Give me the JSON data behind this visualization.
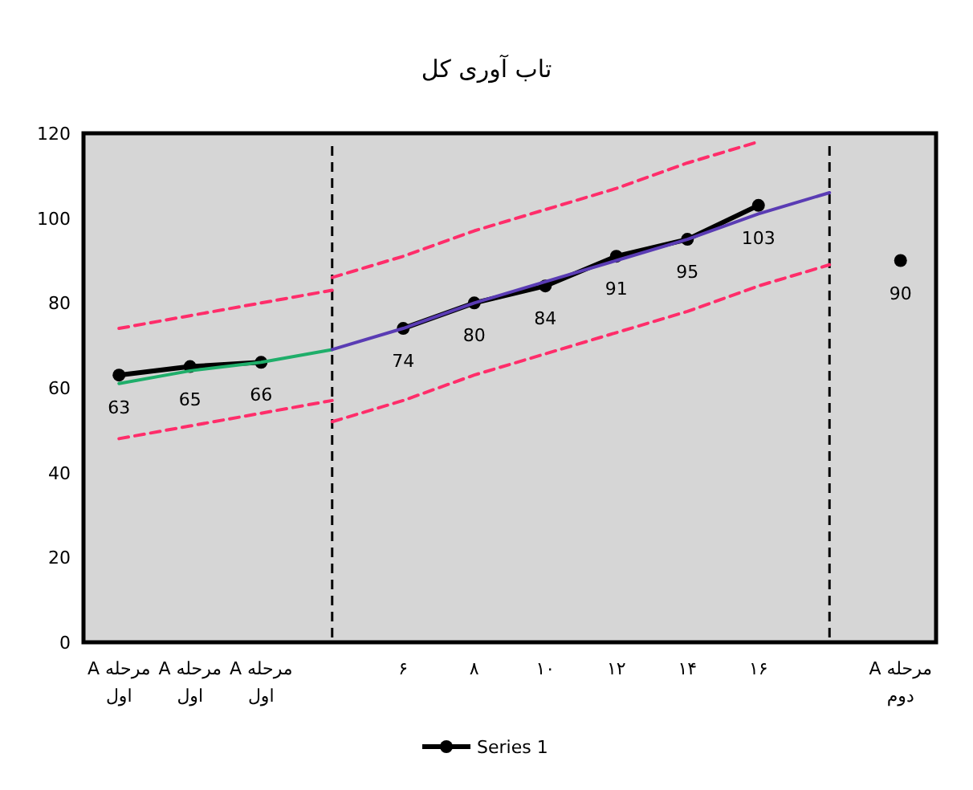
{
  "chart_data": {
    "type": "line",
    "title": "تاب آوری کل",
    "categories": [
      "مرحله A اول",
      "مرحله A اول",
      "مرحله A اول",
      null,
      "۶",
      "۸",
      "۱۰",
      "۱۲",
      "۱۴",
      "۱۶",
      null,
      "مرحله A دوم"
    ],
    "series": [
      {
        "name": "Series 1",
        "color": "#000000",
        "marker": "circle",
        "values": [
          63,
          65,
          66,
          null,
          74,
          80,
          84,
          91,
          95,
          103,
          null,
          90
        ],
        "value_labels": [
          "63",
          "65",
          "66",
          null,
          "74",
          "80",
          "84",
          "91",
          "95",
          "103",
          null,
          "90"
        ]
      },
      {
        "type": "line",
        "values": [
          61,
          64,
          66,
          69,
          null,
          null,
          null,
          null,
          null,
          null,
          null,
          null
        ],
        "color": "#1fae6a"
      },
      {
        "type": "line",
        "values": [
          null,
          null,
          null,
          69,
          74,
          80,
          85,
          90,
          95,
          101,
          106,
          null
        ],
        "color": "#5a3cb4"
      },
      {
        "type": "line",
        "values": [
          74,
          77,
          80,
          83,
          null,
          null,
          null,
          null,
          null,
          null,
          null,
          null
        ],
        "color": "#ff2d6a",
        "line_style": "dashed"
      },
      {
        "type": "line",
        "values": [
          null,
          null,
          null,
          86,
          91,
          97,
          102,
          107,
          113,
          118,
          null,
          null
        ],
        "color": "#ff2d6a",
        "line_style": "dashed"
      },
      {
        "type": "line",
        "values": [
          48,
          51,
          54,
          57,
          null,
          null,
          null,
          null,
          null,
          null,
          null,
          null
        ],
        "color": "#ff2d6a",
        "line_style": "dashed"
      },
      {
        "type": "line",
        "values": [
          null,
          null,
          null,
          52,
          57,
          63,
          68,
          73,
          78,
          84,
          89,
          null
        ],
        "color": "#ff2d6a",
        "line_style": "dashed"
      }
    ],
    "ylim": [
      0,
      120
    ],
    "yticks": [
      0,
      20,
      40,
      60,
      80,
      100,
      120
    ],
    "legend": "bottom"
  }
}
